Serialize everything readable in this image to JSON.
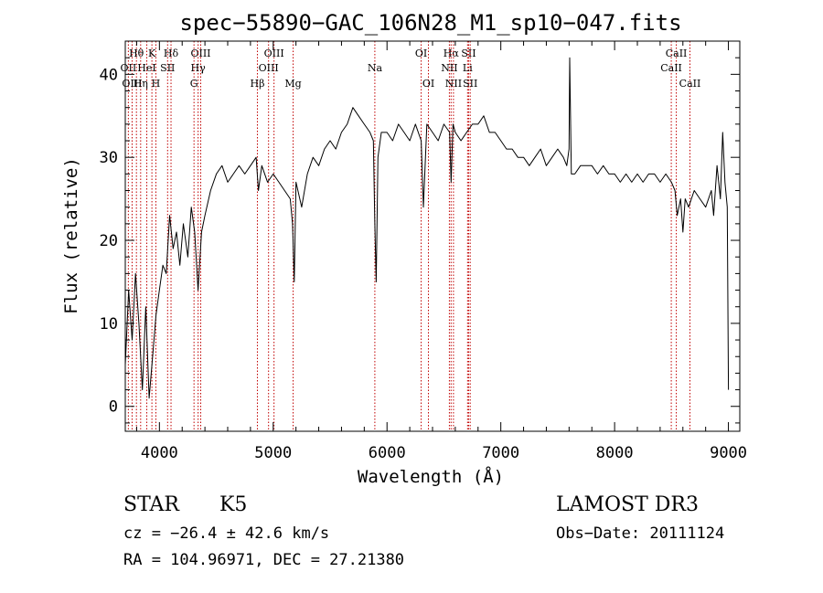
{
  "chart_data": {
    "type": "line",
    "title": "spec−55890−GAC_106N28_M1_sp10−047.fits",
    "xlabel": "Wavelength (Å)",
    "ylabel": "Flux (relative)",
    "xlim": [
      3700,
      9100
    ],
    "ylim": [
      -3,
      44
    ],
    "x_ticks": [
      4000,
      5000,
      6000,
      7000,
      8000,
      9000
    ],
    "y_ticks": [
      0,
      10,
      20,
      30,
      40
    ],
    "grid": false,
    "series": [
      {
        "name": "spectrum",
        "x": [
          3700,
          3730,
          3760,
          3790,
          3820,
          3850,
          3880,
          3910,
          3940,
          3970,
          4000,
          4030,
          4060,
          4090,
          4120,
          4150,
          4180,
          4210,
          4250,
          4280,
          4310,
          4340,
          4370,
          4400,
          4450,
          4500,
          4550,
          4600,
          4650,
          4700,
          4750,
          4800,
          4850,
          4870,
          4900,
          4950,
          5000,
          5050,
          5100,
          5150,
          5170,
          5185,
          5200,
          5250,
          5300,
          5350,
          5400,
          5450,
          5500,
          5550,
          5600,
          5650,
          5700,
          5750,
          5800,
          5850,
          5880,
          5893,
          5905,
          5920,
          5950,
          6000,
          6050,
          6100,
          6150,
          6200,
          6250,
          6300,
          6320,
          6350,
          6400,
          6450,
          6500,
          6550,
          6563,
          6580,
          6600,
          6650,
          6700,
          6750,
          6800,
          6850,
          6900,
          6950,
          7000,
          7050,
          7100,
          7150,
          7200,
          7250,
          7300,
          7350,
          7400,
          7450,
          7500,
          7550,
          7580,
          7600,
          7605,
          7620,
          7650,
          7700,
          7750,
          7800,
          7850,
          7900,
          7950,
          8000,
          8050,
          8100,
          8150,
          8200,
          8250,
          8300,
          8350,
          8400,
          8450,
          8500,
          8530,
          8550,
          8580,
          8600,
          8620,
          8650,
          8700,
          8750,
          8800,
          8850,
          8870,
          8900,
          8930,
          8950,
          8970,
          8990,
          9000
        ],
        "values": [
          5,
          14,
          8,
          16,
          10,
          2,
          12,
          1,
          6,
          11,
          14,
          17,
          16,
          23,
          19,
          21,
          17,
          22,
          18,
          24,
          21,
          14,
          21,
          23,
          26,
          28,
          29,
          27,
          28,
          29,
          28,
          29,
          30,
          26,
          29,
          27,
          28,
          27,
          26,
          25,
          22,
          15,
          27,
          24,
          28,
          30,
          29,
          31,
          32,
          31,
          33,
          34,
          36,
          35,
          34,
          33,
          32,
          22,
          15,
          30,
          33,
          33,
          32,
          34,
          33,
          32,
          34,
          32,
          24,
          34,
          33,
          32,
          34,
          33,
          27,
          34,
          33,
          32,
          33,
          34,
          34,
          35,
          33,
          33,
          32,
          31,
          31,
          30,
          30,
          29,
          30,
          31,
          29,
          30,
          31,
          30,
          29,
          31,
          42,
          28,
          28,
          29,
          29,
          29,
          28,
          29,
          28,
          28,
          27,
          28,
          27,
          28,
          27,
          28,
          28,
          27,
          28,
          27,
          26,
          23,
          25,
          21,
          25,
          24,
          26,
          25,
          24,
          26,
          23,
          29,
          25,
          33,
          27,
          24,
          2
        ]
      }
    ],
    "line_markers": [
      {
        "label": "Hθ",
        "x": 3798,
        "row": 1
      },
      {
        "label": "OII",
        "x": 3727,
        "row": 2
      },
      {
        "label": "OIII",
        "x": 3760,
        "row": 3
      },
      {
        "label": "K",
        "x": 3934,
        "row": 1
      },
      {
        "label": "HeI",
        "x": 3889,
        "row": 2
      },
      {
        "label": "Hη",
        "x": 3835,
        "row": 3
      },
      {
        "label": "SII",
        "x": 4072,
        "row": 2
      },
      {
        "label": "H",
        "x": 3969,
        "row": 3
      },
      {
        "label": "Hδ",
        "x": 4102,
        "row": 1
      },
      {
        "label": "OIII",
        "x": 4363,
        "row": 1
      },
      {
        "label": "Hγ",
        "x": 4340,
        "row": 2
      },
      {
        "label": "G",
        "x": 4304,
        "row": 3
      },
      {
        "label": "OIII",
        "x": 5007,
        "row": 1
      },
      {
        "label": "OIII",
        "x": 4959,
        "row": 2
      },
      {
        "label": "Hβ",
        "x": 4861,
        "row": 3
      },
      {
        "label": "Mg",
        "x": 5175,
        "row": 3
      },
      {
        "label": "Na",
        "x": 5893,
        "row": 2
      },
      {
        "label": "OI",
        "x": 6300,
        "row": 1
      },
      {
        "label": "OI",
        "x": 6364,
        "row": 3
      },
      {
        "label": "Hα",
        "x": 6563,
        "row": 1
      },
      {
        "label": "NII",
        "x": 6548,
        "row": 2
      },
      {
        "label": "NII",
        "x": 6584,
        "row": 3
      },
      {
        "label": "SII",
        "x": 6717,
        "row": 1
      },
      {
        "label": "Li",
        "x": 6708,
        "row": 2
      },
      {
        "label": "SII",
        "x": 6731,
        "row": 3
      },
      {
        "label": "CaII",
        "x": 8542,
        "row": 1
      },
      {
        "label": "CaII",
        "x": 8498,
        "row": 2
      },
      {
        "label": "CaII",
        "x": 8662,
        "row": 3
      }
    ]
  },
  "info": {
    "object_class": "STAR",
    "subclass": "K5",
    "survey": "LAMOST DR3",
    "cz": "cz = −26.4 ± 42.6 km/s",
    "obs_date": "Obs−Date: 20111124",
    "coords": "RA = 104.96971, DEC =  27.21380"
  }
}
